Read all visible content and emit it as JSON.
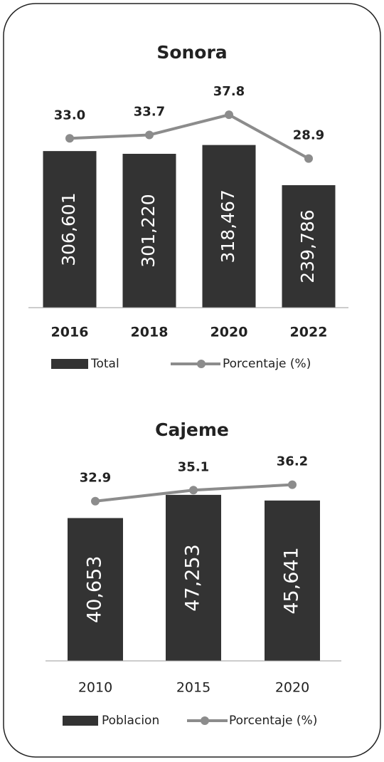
{
  "chart_data": [
    {
      "type": "combo",
      "title": "Sonora",
      "categories": [
        "2016",
        "2018",
        "2020",
        "2022"
      ],
      "series": [
        {
          "name": "Total",
          "color": "#333333",
          "values": [
            306601,
            301220,
            318467,
            239786
          ],
          "value_labels": [
            "306,601",
            "301,220",
            "318,467",
            "239,786"
          ]
        },
        {
          "name": "Porcentaje (%)",
          "color": "#8c8c8c",
          "axis": "y2",
          "values": [
            33.0,
            33.7,
            37.8,
            28.9
          ],
          "value_labels": [
            "33.0",
            "33.7",
            "37.8",
            "28.9"
          ]
        }
      ],
      "ylim": [
        0,
        350000
      ],
      "y2lim": [
        0,
        40
      ]
    },
    {
      "type": "combo",
      "title": "Cajeme",
      "categories": [
        "2010",
        "2015",
        "2020"
      ],
      "series": [
        {
          "name": "Poblacion",
          "color": "#333333",
          "values": [
            40653,
            47253,
            45641
          ],
          "value_labels": [
            "40,653",
            "47,253",
            "45,641"
          ]
        },
        {
          "name": "Porcentaje (%)",
          "color": "#8c8c8c",
          "axis": "y2",
          "values": [
            32.9,
            35.1,
            36.2
          ],
          "value_labels": [
            "32.9",
            "35.1",
            "36.2"
          ]
        }
      ],
      "ylim": [
        0,
        60000
      ],
      "y2lim": [
        0,
        40
      ]
    }
  ]
}
